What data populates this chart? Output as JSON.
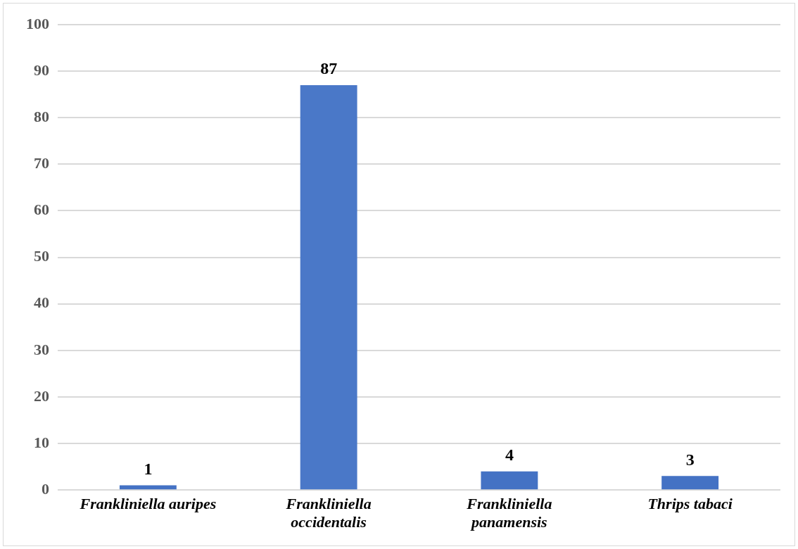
{
  "chart_data": {
    "type": "bar",
    "categories": [
      "Frankliniella auripes",
      "Frankliniella occidentalis",
      "Frankliniella panamensis",
      "Thrips tabaci"
    ],
    "values": [
      1,
      87,
      4,
      3
    ],
    "colors": [
      "#4472c4",
      "#4a78c8",
      "#4472c4",
      "#4472c4"
    ],
    "ylim": [
      0,
      100
    ],
    "yticks": [
      0,
      10,
      20,
      30,
      40,
      50,
      60,
      70,
      80,
      90,
      100
    ],
    "grid": "y",
    "data_labels": true
  }
}
